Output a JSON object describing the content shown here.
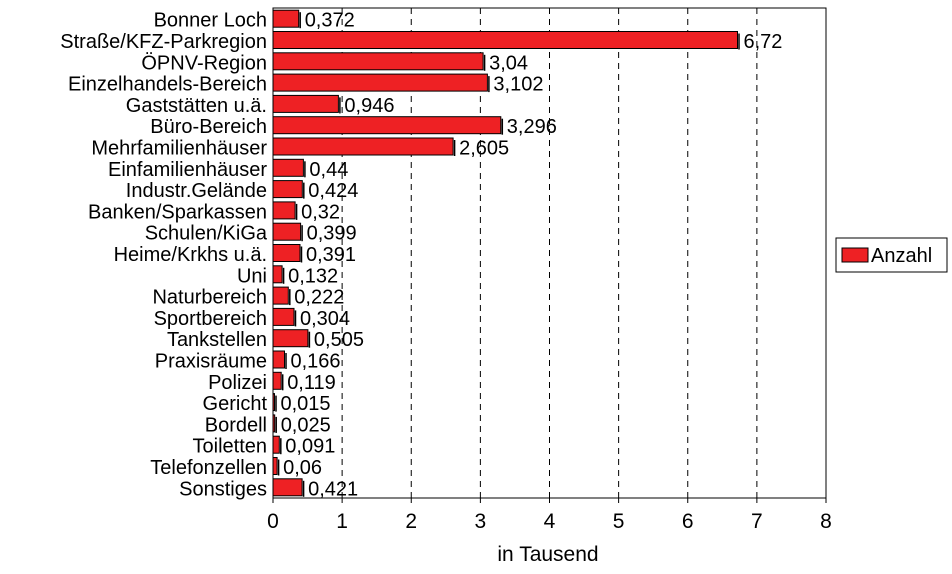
{
  "chart_data": {
    "type": "bar",
    "orientation": "horizontal",
    "categories": [
      "Bonner Loch",
      "Straße/KFZ-Parkregion",
      "ÖPNV-Region",
      "Einzelhandels-Bereich",
      "Gaststätten u.ä.",
      "Büro-Bereich",
      "Mehrfamilienhäuser",
      "Einfamilienhäuser",
      "Industr.Gelände",
      "Banken/Sparkassen",
      "Schulen/KiGa",
      "Heime/Krkhs u.ä.",
      "Uni",
      "Naturbereich",
      "Sportbereich",
      "Tankstellen",
      "Praxisräume",
      "Polizei",
      "Gericht",
      "Bordell",
      "Toiletten",
      "Telefonzellen",
      "Sonstiges"
    ],
    "series": [
      {
        "name": "Anzahl",
        "color": "#ee2124",
        "values": [
          0.372,
          6.72,
          3.04,
          3.102,
          0.946,
          3.296,
          2.605,
          0.44,
          0.424,
          0.32,
          0.399,
          0.391,
          0.132,
          0.222,
          0.304,
          0.505,
          0.166,
          0.119,
          0.015,
          0.025,
          0.091,
          0.06,
          0.421
        ],
        "value_labels": [
          "0,372",
          "6,72",
          "3,04",
          "3,102",
          "0,946",
          "3,296",
          "2,605",
          "0,44",
          "0,424",
          "0,32",
          "0,399",
          "0,391",
          "0,132",
          "0,222",
          "0,304",
          "0,505",
          "0,166",
          "0,119",
          "0,015",
          "0,025",
          "0,091",
          "0,06",
          "0,421"
        ]
      }
    ],
    "xlabel": "in Tausend",
    "xlim": [
      0,
      8
    ],
    "xticks": [
      "0",
      "1",
      "2",
      "3",
      "4",
      "5",
      "6",
      "7",
      "8"
    ],
    "grid": "vertical dashed",
    "legend": "right"
  }
}
